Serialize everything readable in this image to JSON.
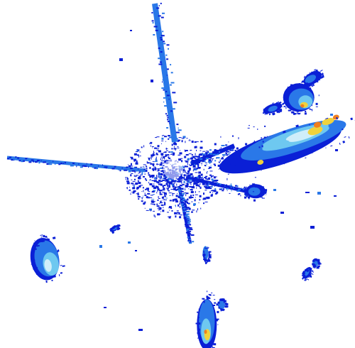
{
  "image": {
    "kind": "weather-radar-reflectivity",
    "background": "#ffffff"
  },
  "palette": {
    "weak": "#0a1fd6",
    "light": "#2a78e8",
    "moderate": "#6ec8f0",
    "pale": "#cfeefa",
    "strong": "#f0d23c",
    "heavy": "#f07f1e"
  },
  "echoes": {
    "clutter_center": {
      "name": "ground-clutter",
      "intensity": "weak"
    },
    "spokes": [
      {
        "name": "north-spoke",
        "intensity": "light"
      },
      {
        "name": "west-spoke",
        "intensity": "light"
      },
      {
        "name": "south-spoke",
        "intensity": "weak"
      },
      {
        "name": "east-spoke",
        "intensity": "weak"
      }
    ],
    "cells": [
      {
        "name": "east-storm-band",
        "peak": "heavy"
      },
      {
        "name": "northeast-cell",
        "peak": "strong"
      },
      {
        "name": "southwest-cell",
        "peak": "pale"
      },
      {
        "name": "south-cell",
        "peak": "strong"
      },
      {
        "name": "southeast-fragments",
        "peak": "light"
      }
    ]
  }
}
